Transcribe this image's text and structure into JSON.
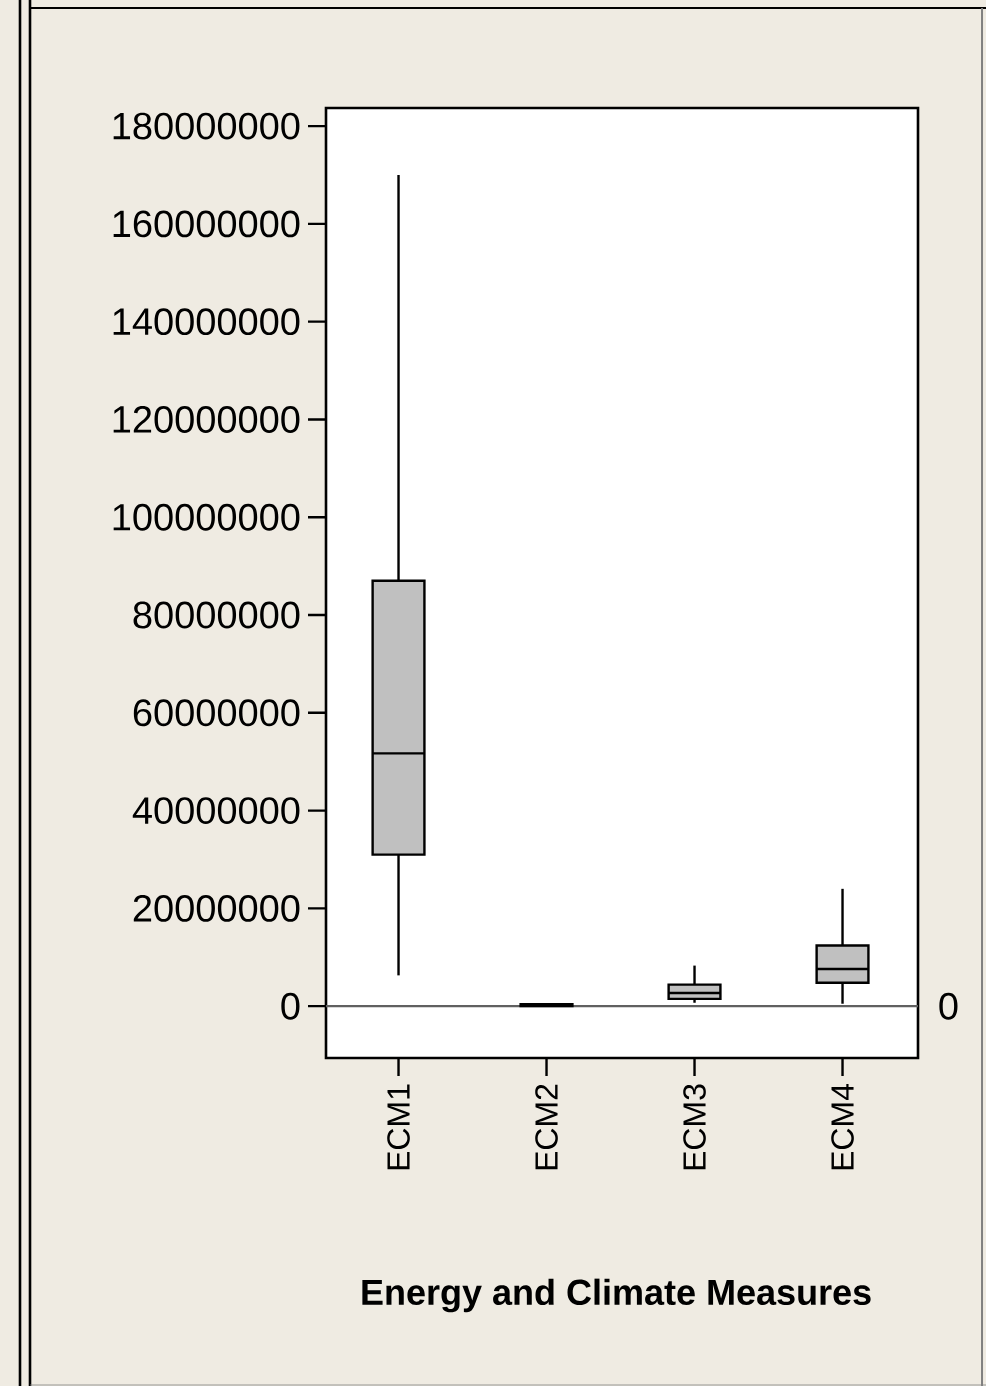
{
  "chart_data": {
    "type": "box",
    "xlabel": "Energy and Climate Measures",
    "categories": [
      "ECM1",
      "ECM2",
      "ECM3",
      "ECM4"
    ],
    "color": "#c0c0c0",
    "boxes": [
      {
        "low": 6300000,
        "q1": 31000000,
        "median": 51700000,
        "q3": 87000000,
        "high": 170000000
      },
      {
        "low": 0,
        "q1": 0,
        "median": 200000,
        "q3": 400000,
        "high": 600000
      },
      {
        "low": 700000,
        "q1": 1500000,
        "median": 2700000,
        "q3": 4400000,
        "high": 8300000
      },
      {
        "low": 500000,
        "q1": 4800000,
        "median": 7600000,
        "q3": 12400000,
        "high": 24000000
      }
    ],
    "ylim": [
      -10600000,
      183700000
    ],
    "yticks": [
      0,
      20000000,
      40000000,
      60000000,
      80000000,
      100000000,
      120000000,
      140000000,
      160000000,
      180000000
    ],
    "ref_lines": [
      {
        "axis": "y",
        "value": 0,
        "label": "0",
        "color": "#606060"
      }
    ]
  }
}
